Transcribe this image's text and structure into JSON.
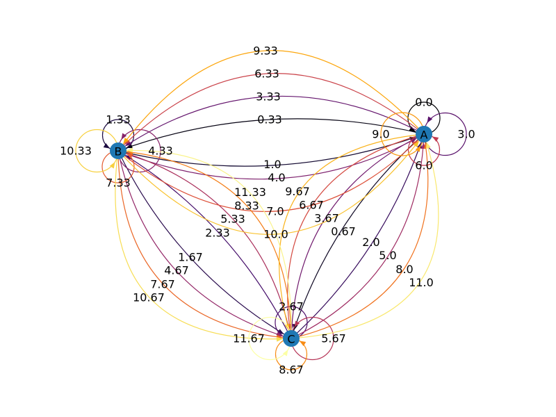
{
  "diagram": {
    "type": "directed multigraph",
    "node_color": "#1f78b4",
    "edge_colormap": "inferno",
    "edge_color_range": [
      0.0,
      11.67
    ],
    "nodes": [
      "A",
      "B",
      "C"
    ],
    "edges": [
      {
        "source": "A",
        "target": "A",
        "label": "0.0",
        "weight": 0.0
      },
      {
        "source": "A",
        "target": "B",
        "label": "0.33",
        "weight": 0.33
      },
      {
        "source": "A",
        "target": "C",
        "label": "0.67",
        "weight": 0.67
      },
      {
        "source": "B",
        "target": "A",
        "label": "1.0",
        "weight": 1.0
      },
      {
        "source": "B",
        "target": "B",
        "label": "1.33",
        "weight": 1.33
      },
      {
        "source": "B",
        "target": "C",
        "label": "1.67",
        "weight": 1.67
      },
      {
        "source": "C",
        "target": "A",
        "label": "2.0",
        "weight": 2.0
      },
      {
        "source": "C",
        "target": "B",
        "label": "2.33",
        "weight": 2.33
      },
      {
        "source": "C",
        "target": "C",
        "label": "2.67",
        "weight": 2.67
      },
      {
        "source": "A",
        "target": "A",
        "label": "3.0",
        "weight": 3.0
      },
      {
        "source": "A",
        "target": "B",
        "label": "3.33",
        "weight": 3.33
      },
      {
        "source": "A",
        "target": "C",
        "label": "3.67",
        "weight": 3.67
      },
      {
        "source": "B",
        "target": "A",
        "label": "4.0",
        "weight": 4.0
      },
      {
        "source": "B",
        "target": "B",
        "label": "4.33",
        "weight": 4.33
      },
      {
        "source": "B",
        "target": "C",
        "label": "4.67",
        "weight": 4.67
      },
      {
        "source": "C",
        "target": "A",
        "label": "5.0",
        "weight": 5.0
      },
      {
        "source": "C",
        "target": "B",
        "label": "5.33",
        "weight": 5.33
      },
      {
        "source": "C",
        "target": "C",
        "label": "5.67",
        "weight": 5.67
      },
      {
        "source": "A",
        "target": "A",
        "label": "6.0",
        "weight": 6.0
      },
      {
        "source": "A",
        "target": "B",
        "label": "6.33",
        "weight": 6.33
      },
      {
        "source": "A",
        "target": "C",
        "label": "6.67",
        "weight": 6.67
      },
      {
        "source": "B",
        "target": "A",
        "label": "7.0",
        "weight": 7.0
      },
      {
        "source": "B",
        "target": "B",
        "label": "7.33",
        "weight": 7.33
      },
      {
        "source": "B",
        "target": "C",
        "label": "7.67",
        "weight": 7.67
      },
      {
        "source": "C",
        "target": "A",
        "label": "8.0",
        "weight": 8.0
      },
      {
        "source": "C",
        "target": "B",
        "label": "8.33",
        "weight": 8.33
      },
      {
        "source": "C",
        "target": "C",
        "label": "8.67",
        "weight": 8.67
      },
      {
        "source": "A",
        "target": "A",
        "label": "9.0",
        "weight": 9.0
      },
      {
        "source": "A",
        "target": "B",
        "label": "9.33",
        "weight": 9.33
      },
      {
        "source": "A",
        "target": "C",
        "label": "9.67",
        "weight": 9.67
      },
      {
        "source": "B",
        "target": "A",
        "label": "10.0",
        "weight": 10.0
      },
      {
        "source": "B",
        "target": "B",
        "label": "10.33",
        "weight": 10.33
      },
      {
        "source": "B",
        "target": "C",
        "label": "10.67",
        "weight": 10.67
      },
      {
        "source": "C",
        "target": "A",
        "label": "11.0",
        "weight": 11.0
      },
      {
        "source": "C",
        "target": "B",
        "label": "11.33",
        "weight": 11.33
      },
      {
        "source": "C",
        "target": "C",
        "label": "11.67",
        "weight": 11.67
      }
    ]
  }
}
